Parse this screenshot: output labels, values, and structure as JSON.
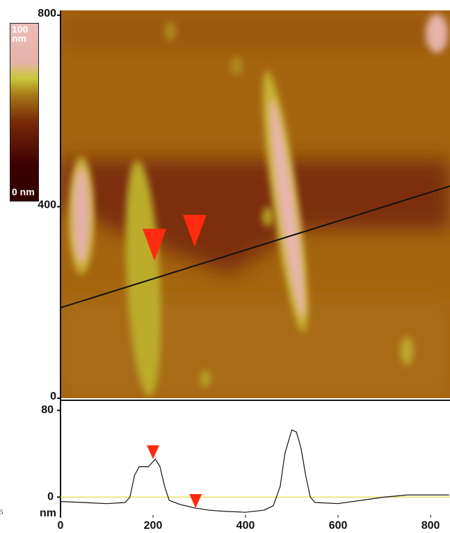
{
  "chart_data": [
    {
      "type": "image",
      "xlim": [
        0,
        842
      ],
      "ylim": [
        0,
        810
      ],
      "yticks": [
        0,
        400,
        800
      ],
      "colorbar": {
        "max_label": "100 nm",
        "min_label": "0 nm"
      },
      "scan_line": {
        "x": [
          0,
          842
        ],
        "y": [
          189,
          443
        ],
        "color": "#111111"
      },
      "markers": {
        "x": [
          203,
          290
        ],
        "y": [
          287,
          316
        ],
        "color": "#ff2a10"
      }
    },
    {
      "type": "line",
      "x": [
        0,
        50,
        100,
        140,
        150,
        160,
        170,
        190,
        205,
        215,
        225,
        235,
        260,
        290,
        320,
        350,
        400,
        440,
        460,
        475,
        485,
        500,
        510,
        520,
        530,
        540,
        550,
        600,
        650,
        700,
        750,
        800,
        840
      ],
      "values": [
        -4,
        -5,
        -6,
        -5,
        0,
        20,
        28,
        28,
        35,
        28,
        10,
        -3,
        -7,
        -10,
        -12,
        -13,
        -14,
        -12,
        -8,
        10,
        40,
        62,
        60,
        45,
        20,
        0,
        -5,
        -6,
        -3,
        0,
        2,
        2,
        2
      ],
      "color": "#111111",
      "xlim": [
        0,
        842
      ],
      "ylim": [
        -19,
        88
      ],
      "yticks": [
        0,
        80
      ],
      "xticks": [
        0,
        200,
        400,
        600,
        800
      ],
      "y_label": "nm",
      "reference_line": 0,
      "reference_color": "#e8e060",
      "markers": {
        "x": [
          200,
          292
        ],
        "y": [
          35,
          -10
        ],
        "color": "#ff2a10"
      }
    },
    {
      "type": "caption",
      "text": "5"
    }
  ]
}
